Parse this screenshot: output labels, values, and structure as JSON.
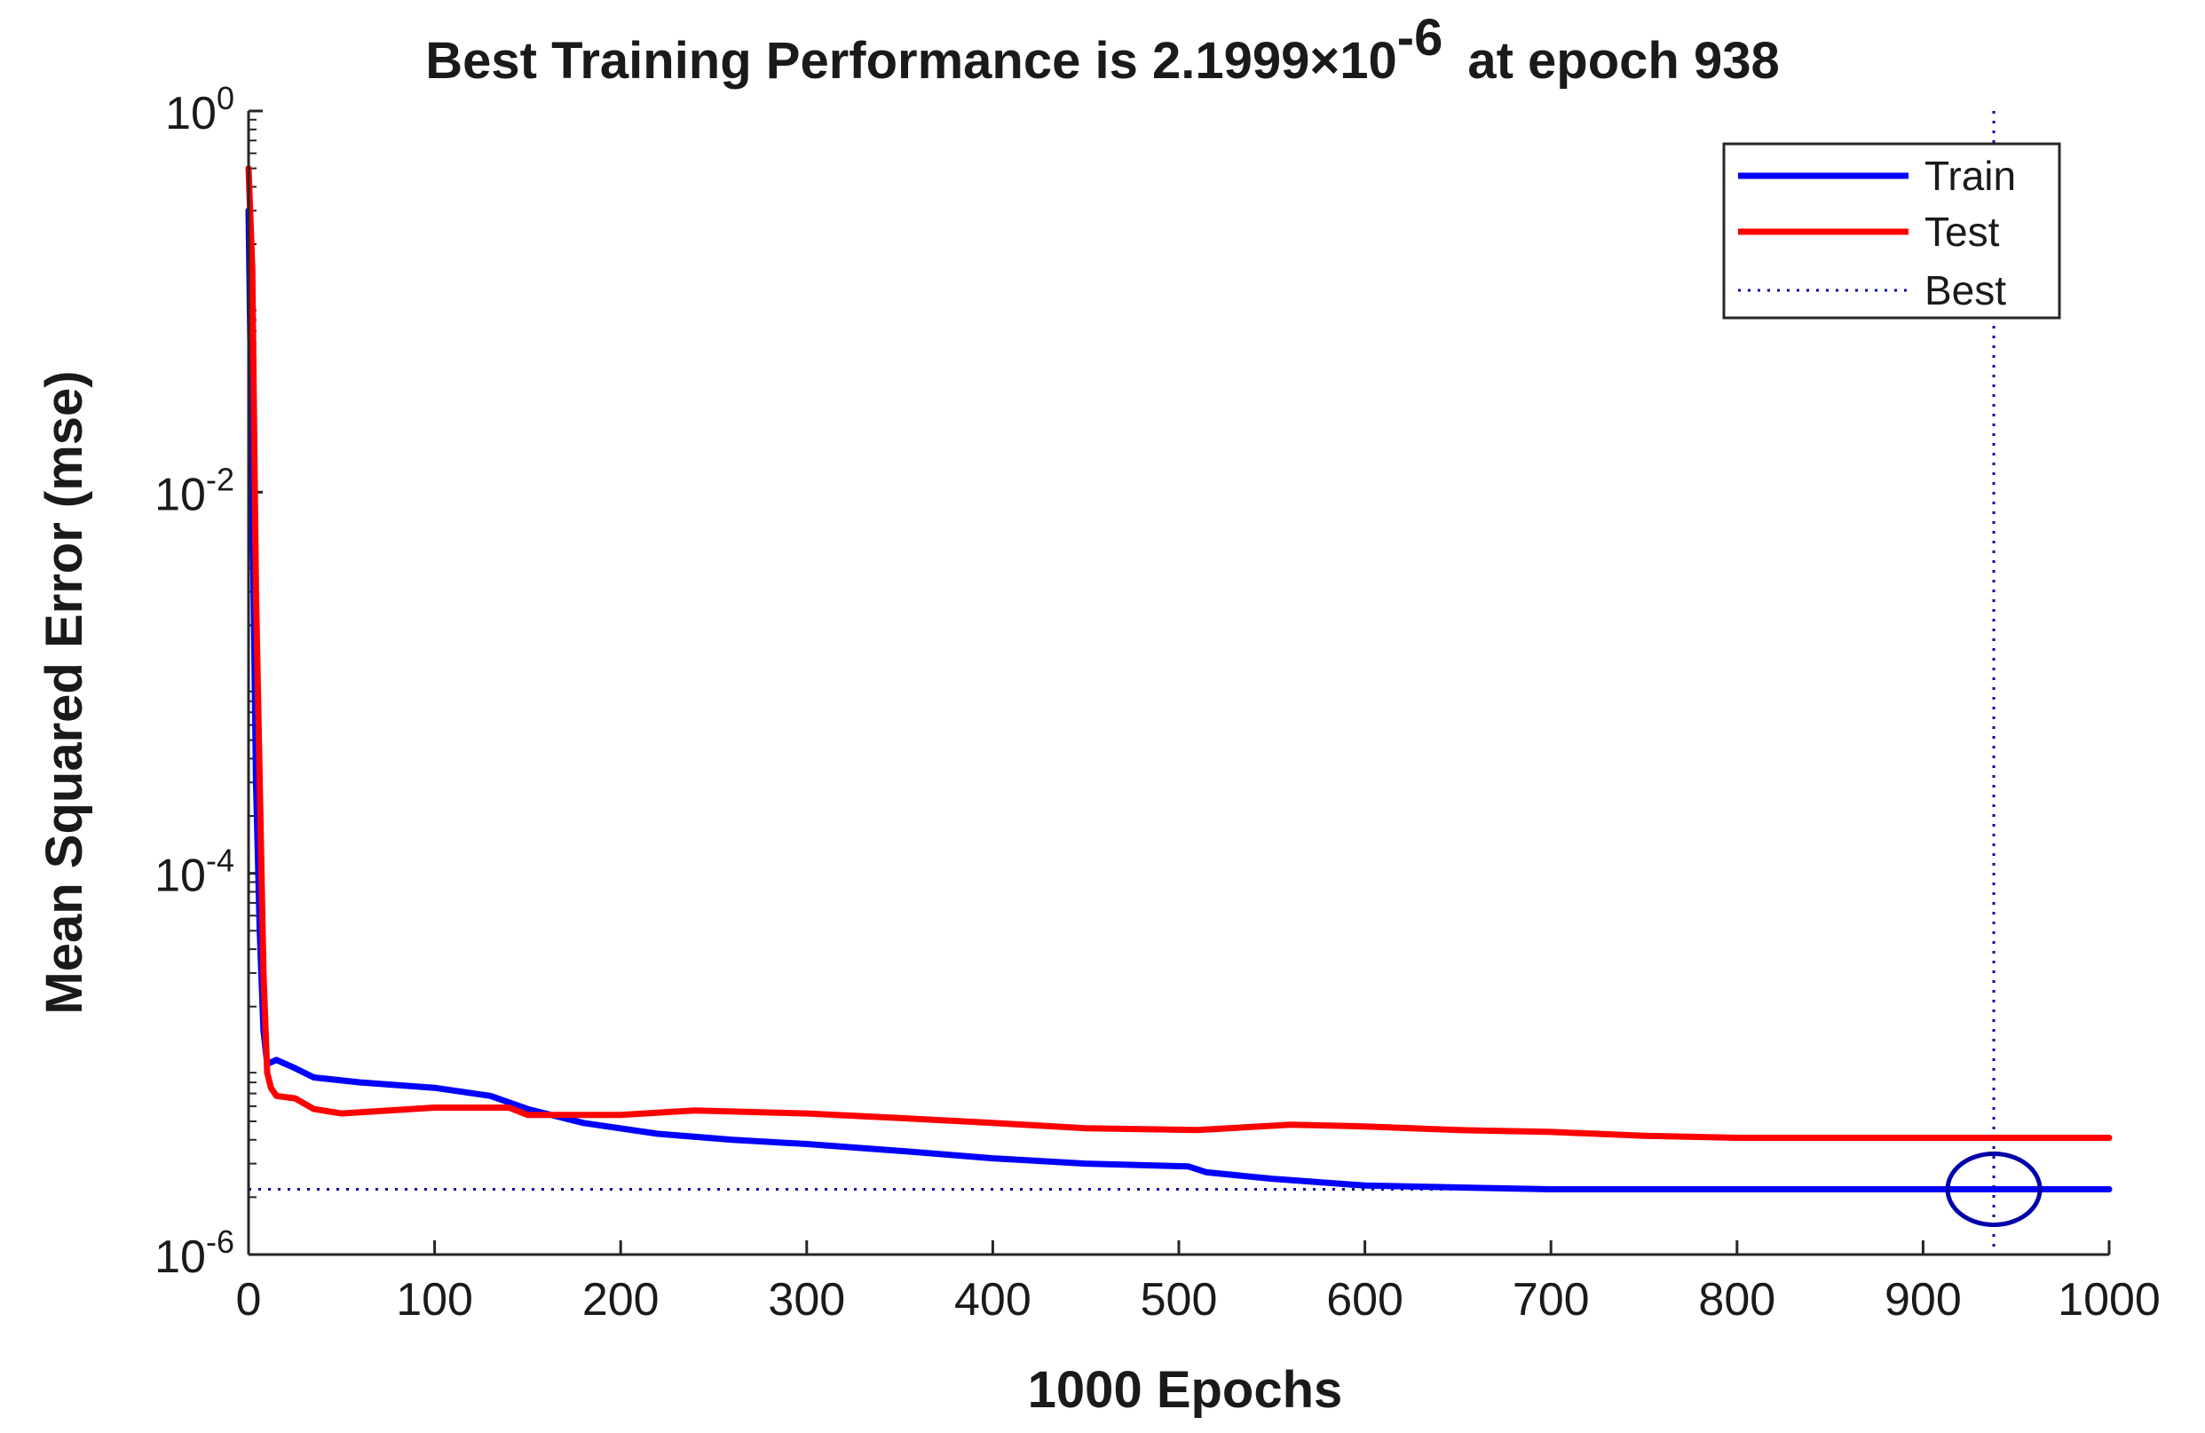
{
  "chart_data": {
    "type": "line",
    "title": {
      "prefix": "Best Training Performance is 2.1999×10",
      "exponent": "-6",
      "suffix": "at epoch 938"
    },
    "xlabel": "1000 Epochs",
    "ylabel": "Mean Squared Error  (mse)",
    "xlim": [
      0,
      1000
    ],
    "ylim_log10": [
      -6,
      0
    ],
    "yscale": "log",
    "x_ticks": [
      0,
      100,
      200,
      300,
      400,
      500,
      600,
      700,
      800,
      900,
      1000
    ],
    "x_tick_labels": [
      "0",
      "100",
      "200",
      "300",
      "400",
      "500",
      "600",
      "700",
      "800",
      "900",
      "1000"
    ],
    "y_ticks": [
      {
        "value_log10": 0,
        "base": "10",
        "exponent": "0"
      },
      {
        "value_log10": -2,
        "base": "10",
        "exponent": "-2"
      },
      {
        "value_log10": -4,
        "base": "10",
        "exponent": "-4"
      },
      {
        "value_log10": -6,
        "base": "10",
        "exponent": "-6"
      }
    ],
    "legend_position": "top-right",
    "series": [
      {
        "name": "Train",
        "color": "#0000ff",
        "style": "solid",
        "points": [
          [
            0,
            0.3
          ],
          [
            2,
            0.01
          ],
          [
            4,
            0.0003
          ],
          [
            6,
            5e-05
          ],
          [
            8,
            1.5e-05
          ],
          [
            10,
            1e-05
          ],
          [
            15,
            1.05e-05
          ],
          [
            25,
            9.5e-06
          ],
          [
            35,
            8.5e-06
          ],
          [
            60,
            8e-06
          ],
          [
            100,
            7.5e-06
          ],
          [
            130,
            6.8e-06
          ],
          [
            150,
            5.8e-06
          ],
          [
            180,
            4.9e-06
          ],
          [
            220,
            4.3e-06
          ],
          [
            260,
            4e-06
          ],
          [
            300,
            3.8e-06
          ],
          [
            350,
            3.5e-06
          ],
          [
            400,
            3.2e-06
          ],
          [
            450,
            3e-06
          ],
          [
            505,
            2.9e-06
          ],
          [
            515,
            2.7e-06
          ],
          [
            550,
            2.5e-06
          ],
          [
            600,
            2.3e-06
          ],
          [
            700,
            2.2e-06
          ],
          [
            800,
            2.2e-06
          ],
          [
            938,
            2.2e-06
          ],
          [
            1000,
            2.2e-06
          ]
        ]
      },
      {
        "name": "Test",
        "color": "#ff0000",
        "style": "solid",
        "points": [
          [
            0,
            0.5
          ],
          [
            2,
            0.15
          ],
          [
            4,
            0.003
          ],
          [
            6,
            0.0003
          ],
          [
            8,
            3e-05
          ],
          [
            10,
            9e-06
          ],
          [
            12,
            7.5e-06
          ],
          [
            15,
            6.8e-06
          ],
          [
            25,
            6.6e-06
          ],
          [
            35,
            5.8e-06
          ],
          [
            50,
            5.5e-06
          ],
          [
            100,
            5.9e-06
          ],
          [
            140,
            5.9e-06
          ],
          [
            150,
            5.4e-06
          ],
          [
            200,
            5.4e-06
          ],
          [
            240,
            5.7e-06
          ],
          [
            300,
            5.5e-06
          ],
          [
            350,
            5.2e-06
          ],
          [
            400,
            4.9e-06
          ],
          [
            450,
            4.6e-06
          ],
          [
            510,
            4.5e-06
          ],
          [
            560,
            4.8e-06
          ],
          [
            600,
            4.7e-06
          ],
          [
            650,
            4.5e-06
          ],
          [
            700,
            4.4e-06
          ],
          [
            750,
            4.2e-06
          ],
          [
            800,
            4.1e-06
          ],
          [
            900,
            4.1e-06
          ],
          [
            1000,
            4.1e-06
          ]
        ]
      },
      {
        "name": "Best",
        "color": "#0000aa",
        "style": "dotted",
        "best_epoch": 938,
        "best_value": 2.1999e-06
      }
    ]
  }
}
